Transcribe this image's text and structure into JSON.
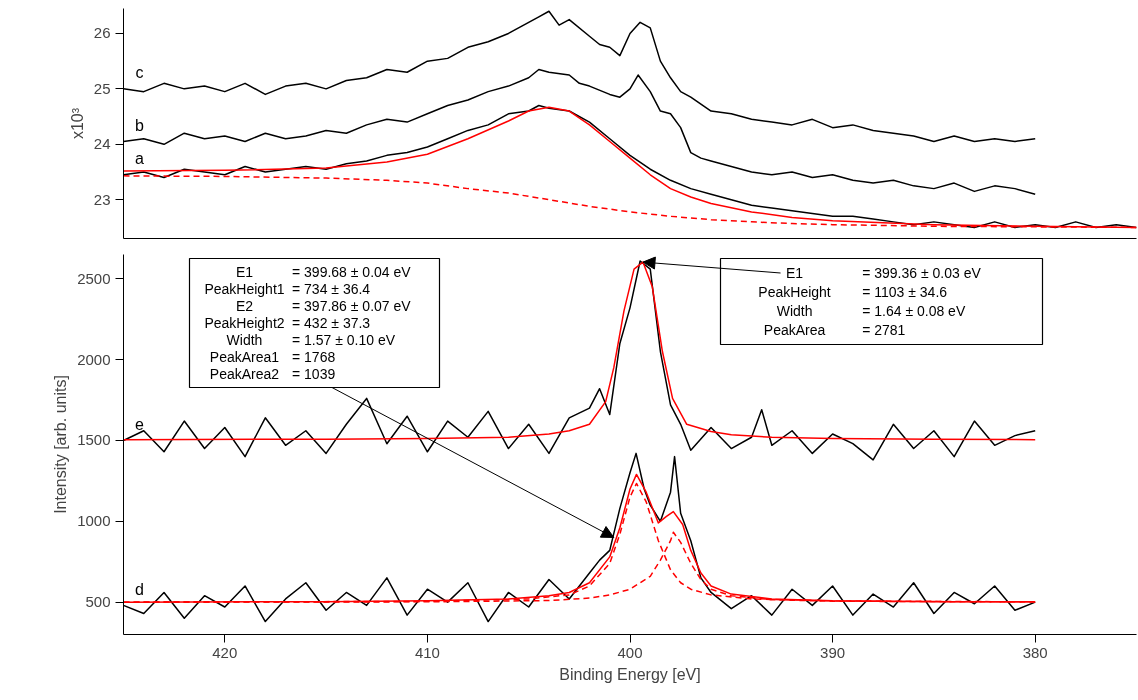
{
  "chart_data": [
    {
      "type": "line",
      "ylabel": "x10³",
      "xlim": [
        425,
        375
      ],
      "ylim": [
        22.3,
        26.45
      ],
      "yticks": [
        23,
        24,
        25,
        26
      ],
      "tick_labels": "y",
      "grid": false,
      "series": [
        {
          "color": "#000000",
          "line_style": "solid",
          "x": [
            425,
            424,
            423,
            422,
            421,
            420,
            419,
            418,
            417,
            416,
            415,
            414,
            413,
            412,
            411,
            410,
            409,
            408,
            407,
            406,
            405,
            404.5,
            404,
            403.5,
            403,
            402,
            401.5,
            401,
            400.5,
            400,
            399.5,
            399,
            398.5,
            398,
            397.5,
            397,
            396,
            395,
            394,
            393,
            392,
            391,
            390,
            389,
            388,
            387,
            386,
            385,
            384,
            383,
            382,
            381,
            380
          ],
          "values": [
            25.0,
            24.95,
            25.1,
            25.0,
            25.05,
            24.95,
            25.1,
            24.9,
            25.05,
            25.1,
            25.0,
            25.15,
            25.2,
            25.35,
            25.3,
            25.5,
            25.55,
            25.75,
            25.85,
            26.0,
            26.2,
            26.3,
            26.4,
            26.15,
            26.25,
            25.95,
            25.8,
            25.75,
            25.6,
            26.0,
            26.2,
            26.1,
            25.5,
            25.2,
            24.95,
            24.85,
            24.6,
            24.55,
            24.45,
            24.4,
            24.35,
            24.45,
            24.3,
            24.35,
            24.25,
            24.2,
            24.15,
            24.05,
            24.15,
            24.05,
            24.1,
            24.05,
            24.1
          ]
        },
        {
          "color": "#000000",
          "line_style": "solid",
          "x": [
            425,
            424,
            423,
            422,
            421,
            420,
            419,
            418,
            417,
            416,
            415,
            414,
            413,
            412,
            411,
            410,
            409,
            408,
            407,
            406,
            405,
            404.5,
            404,
            403,
            402.5,
            402,
            401,
            400.5,
            400,
            399.6,
            399,
            398.5,
            398,
            397.5,
            397,
            396.5,
            396,
            395,
            394,
            393,
            392,
            391,
            390,
            389,
            388,
            387,
            386,
            385,
            384,
            383,
            382,
            381,
            380
          ],
          "values": [
            24.05,
            24.1,
            24.0,
            24.2,
            24.1,
            24.15,
            24.05,
            24.2,
            24.1,
            24.15,
            24.25,
            24.2,
            24.35,
            24.45,
            24.4,
            24.55,
            24.7,
            24.8,
            24.95,
            25.05,
            25.2,
            25.35,
            25.3,
            25.25,
            25.1,
            25.05,
            24.9,
            24.85,
            25.0,
            25.25,
            24.95,
            24.6,
            24.55,
            24.3,
            23.85,
            23.75,
            23.7,
            23.6,
            23.5,
            23.45,
            23.5,
            23.4,
            23.45,
            23.35,
            23.3,
            23.35,
            23.25,
            23.2,
            23.3,
            23.15,
            23.25,
            23.2,
            23.1
          ]
        },
        {
          "color": "#000000",
          "line_style": "solid",
          "x": [
            425,
            424,
            423,
            422,
            421,
            420,
            419,
            418,
            417,
            416,
            415,
            414,
            413,
            412,
            411,
            410,
            409,
            408,
            407,
            406,
            405,
            404.5,
            404,
            403,
            402,
            401,
            400,
            399,
            398,
            397,
            396,
            395,
            394,
            393,
            392,
            391,
            390,
            389,
            388,
            387,
            386,
            385,
            384,
            383,
            382,
            381,
            380,
            379,
            378,
            377,
            376,
            375
          ],
          "values": [
            23.45,
            23.5,
            23.4,
            23.55,
            23.5,
            23.45,
            23.6,
            23.5,
            23.55,
            23.6,
            23.55,
            23.65,
            23.7,
            23.8,
            23.85,
            23.95,
            24.1,
            24.25,
            24.35,
            24.55,
            24.6,
            24.7,
            24.65,
            24.6,
            24.4,
            24.1,
            23.8,
            23.55,
            23.35,
            23.2,
            23.1,
            23.0,
            22.9,
            22.85,
            22.8,
            22.75,
            22.7,
            22.7,
            22.65,
            22.6,
            22.55,
            22.6,
            22.55,
            22.5,
            22.6,
            22.5,
            22.55,
            22.5,
            22.6,
            22.5,
            22.55,
            22.5
          ]
        },
        {
          "color": "#ff0000",
          "line_style": "solid",
          "x": [
            425,
            420,
            415,
            412,
            410,
            408,
            406,
            405,
            404,
            403,
            402,
            401,
            400,
            399,
            398,
            397,
            396,
            394,
            392,
            390,
            385,
            380,
            375
          ],
          "values": [
            23.52,
            23.53,
            23.57,
            23.68,
            23.82,
            24.1,
            24.42,
            24.6,
            24.67,
            24.6,
            24.35,
            24.05,
            23.75,
            23.45,
            23.2,
            23.05,
            22.93,
            22.78,
            22.68,
            22.62,
            22.55,
            22.52,
            22.5
          ]
        },
        {
          "color": "#ff0000",
          "line_style": "dashed",
          "x": [
            425,
            420,
            415,
            412,
            410,
            408,
            406,
            404,
            402,
            400,
            398,
            396,
            394,
            392,
            390,
            385,
            380,
            375
          ],
          "values": [
            23.43,
            23.42,
            23.39,
            23.35,
            23.3,
            23.2,
            23.12,
            23.0,
            22.88,
            22.78,
            22.7,
            22.64,
            22.6,
            22.57,
            22.55,
            22.52,
            22.51,
            22.5
          ]
        }
      ],
      "annotations": [
        "c",
        "b",
        "a"
      ]
    },
    {
      "type": "line",
      "xlabel": "Binding Energy [eV]",
      "ylabel": "Intensity [arb. units]",
      "xlim": [
        425,
        375
      ],
      "ylim": [
        300,
        2650
      ],
      "xticks": [
        420,
        410,
        400,
        390,
        380
      ],
      "yticks": [
        500,
        1000,
        1500,
        2000,
        2500
      ],
      "grid": false,
      "series": [
        {
          "color": "#000000",
          "line_style": "solid",
          "x": [
            425,
            424,
            423,
            422,
            421,
            420,
            419,
            418,
            417,
            416,
            415,
            414,
            413,
            412,
            411,
            410,
            409,
            408,
            407,
            406,
            405,
            404,
            403,
            402,
            401.5,
            401,
            400.5,
            400,
            399.5,
            399,
            398.5,
            398,
            397.5,
            397,
            396,
            395,
            394,
            393.5,
            393,
            392,
            391,
            390,
            389,
            388,
            387,
            386,
            385,
            384,
            383,
            382,
            381,
            380
          ],
          "values": [
            1500,
            1560,
            1430,
            1620,
            1450,
            1580,
            1400,
            1640,
            1470,
            1560,
            1420,
            1600,
            1760,
            1480,
            1650,
            1430,
            1620,
            1520,
            1680,
            1450,
            1600,
            1420,
            1640,
            1700,
            1820,
            1660,
            2100,
            2320,
            2610,
            2560,
            2050,
            1720,
            1600,
            1440,
            1580,
            1450,
            1520,
            1690,
            1470,
            1560,
            1420,
            1540,
            1480,
            1380,
            1600,
            1450,
            1560,
            1400,
            1620,
            1470,
            1530,
            1560
          ]
        },
        {
          "color": "#ff0000",
          "line_style": "solid",
          "x": [
            425,
            415,
            410,
            406,
            404,
            403,
            402,
            401.2,
            400.8,
            400.3,
            399.8,
            399.36,
            398.9,
            398.4,
            397.9,
            397.2,
            396,
            395,
            393,
            390,
            385,
            380
          ],
          "values": [
            1505,
            1508,
            1512,
            1520,
            1540,
            1560,
            1600,
            1740,
            1950,
            2300,
            2560,
            2603,
            2450,
            2050,
            1760,
            1600,
            1555,
            1535,
            1520,
            1512,
            1507,
            1505
          ]
        },
        {
          "color": "#000000",
          "line_style": "solid",
          "x": [
            425,
            424,
            423,
            422,
            421,
            420,
            419,
            418,
            417,
            416,
            415,
            414,
            413,
            412,
            411,
            410,
            409,
            408,
            407,
            406,
            405,
            404,
            403,
            402,
            401.5,
            401,
            400.5,
            400,
            399.7,
            399.3,
            399,
            398.5,
            398,
            397.8,
            397.5,
            397,
            396.5,
            396,
            395,
            394,
            393,
            392,
            391,
            390,
            389,
            388,
            387,
            386,
            385,
            384,
            383,
            382,
            381,
            380
          ],
          "values": [
            480,
            430,
            560,
            400,
            540,
            470,
            600,
            380,
            520,
            620,
            450,
            560,
            480,
            650,
            420,
            580,
            500,
            620,
            380,
            560,
            470,
            640,
            520,
            680,
            760,
            820,
            1080,
            1300,
            1420,
            1200,
            1100,
            1000,
            1180,
            1400,
            1050,
            880,
            650,
            560,
            460,
            540,
            420,
            580,
            480,
            600,
            420,
            550,
            470,
            620,
            430,
            560,
            490,
            600,
            450,
            500
          ]
        },
        {
          "color": "#ff0000",
          "line_style": "solid",
          "x": [
            425,
            415,
            410,
            406,
            404,
            403,
            402,
            401,
            400.5,
            400,
            399.68,
            399.2,
            398.6,
            398.2,
            397.86,
            397.4,
            397,
            396.5,
            396,
            395,
            393,
            390,
            385,
            380
          ],
          "values": [
            500,
            503,
            508,
            520,
            540,
            560,
            620,
            780,
            960,
            1200,
            1290,
            1180,
            990,
            1030,
            1060,
            980,
            820,
            680,
            600,
            550,
            520,
            508,
            503,
            502
          ]
        },
        {
          "color": "#ff0000",
          "line_style": "dashed",
          "x": [
            425,
            410,
            405,
            403,
            402,
            401,
            400.5,
            400,
            399.68,
            399.2,
            398.6,
            398,
            397.5,
            397,
            396,
            394,
            390,
            380
          ],
          "values": [
            500,
            505,
            520,
            545,
            600,
            740,
            920,
            1150,
            1234,
            1120,
            880,
            700,
            620,
            580,
            545,
            520,
            508,
            502
          ]
        },
        {
          "color": "#ff0000",
          "line_style": "dashed",
          "x": [
            425,
            410,
            404,
            402,
            401,
            400,
            399,
            398.5,
            398,
            397.86,
            397.5,
            397,
            396.5,
            396,
            395,
            393,
            390,
            380
          ],
          "values": [
            500,
            502,
            510,
            525,
            545,
            580,
            660,
            760,
            880,
            932,
            870,
            740,
            640,
            580,
            540,
            515,
            506,
            501
          ]
        }
      ],
      "annotations": [
        "e",
        "d",
        "E1",
        "= 399.68 ± 0.04 eV",
        "PeakHeight1",
        "= 734 ± 36.4",
        "E2",
        "= 397.86 ± 0.07 eV",
        "PeakHeight2",
        "= 432 ± 37.3",
        "Width",
        "= 1.57 ± 0.10 eV",
        "PeakArea1",
        "= 1768",
        "PeakArea2",
        {
          "text": "= 1039",
          "x": 400.8,
          "y": 900
        },
        {
          "text": "E1",
          "x": 399.36,
          "y": 2603
        },
        "= 399.36 ± 0.03 eV",
        "PeakHeight",
        "= 1103 ± 34.6",
        "Width",
        "= 1.64 ± 0.08 eV",
        "PeakArea",
        "= 2781"
      ]
    }
  ]
}
